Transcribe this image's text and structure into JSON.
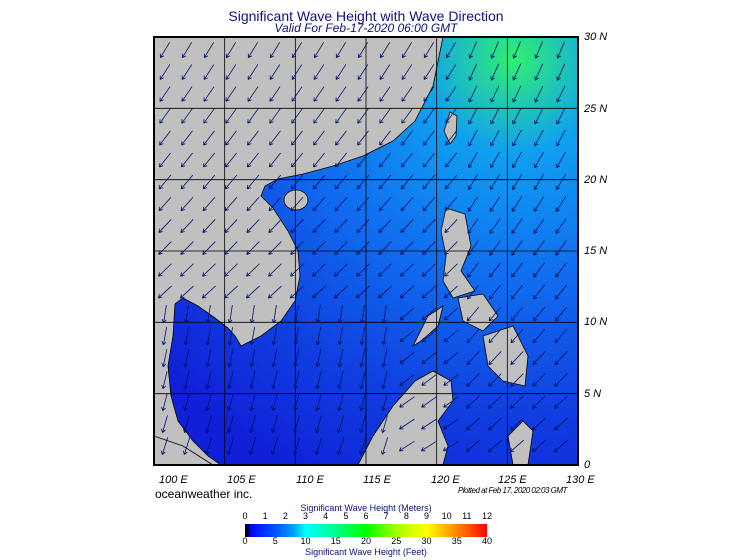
{
  "title": "Significant Wave Height with Wave Direction",
  "subtitle": "Valid For Feb-17-2020 06:00 GMT",
  "lat_labels": [
    "30 N",
    "25 N",
    "20 N",
    "15 N",
    "10 N",
    "5 N",
    "0"
  ],
  "lon_labels": [
    "100 E",
    "105 E",
    "110 E",
    "115 E",
    "120 E",
    "125 E",
    "130 E"
  ],
  "brand": "oceanweather inc.",
  "plotted": "Plotted at Feb 17, 2020 02:03 GMT",
  "colorbar": {
    "meters_title": "Significant Wave Height (Meters)",
    "meters_ticks": [
      "0",
      "1",
      "2",
      "3",
      "4",
      "5",
      "6",
      "7",
      "8",
      "9",
      "10",
      "11",
      "12"
    ],
    "feet_ticks": [
      "0",
      "5",
      "10",
      "15",
      "20",
      "25",
      "30",
      "35",
      "40"
    ],
    "feet_title": "Significant Wave Height (Feet)"
  },
  "colors": {
    "land": "#c0c0c0",
    "sea_low": "#1030e0",
    "sea_high": "#20e080"
  }
}
